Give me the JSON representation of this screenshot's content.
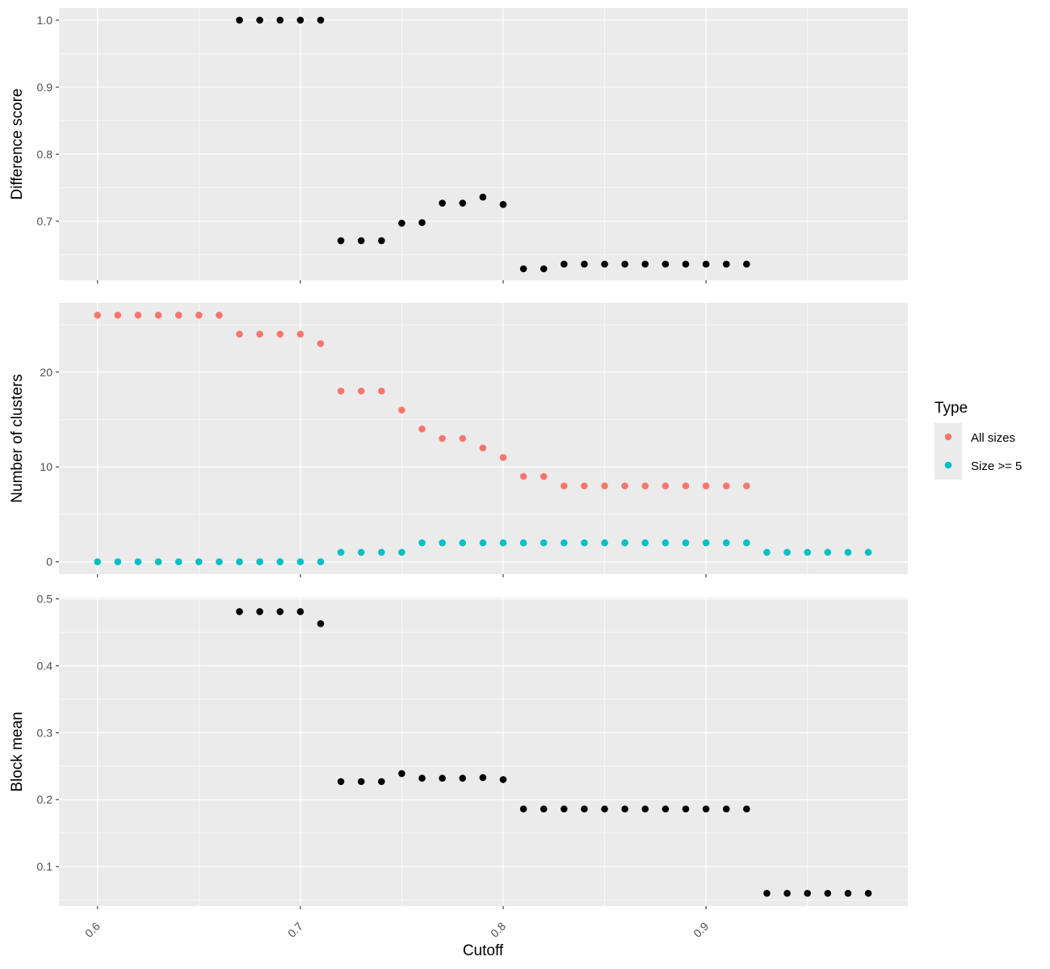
{
  "chart_data": {
    "type": "scatter",
    "x_label": "Cutoff",
    "x_ticks": [
      "0.6",
      "0.7",
      "0.8",
      "0.9"
    ],
    "x_range": [
      0.581,
      0.9995
    ],
    "grid": true,
    "legend": {
      "title": "Type",
      "placement": "right",
      "entries": [
        {
          "name": "All sizes",
          "color": "#F8766D"
        },
        {
          "name": "Size >= 5",
          "color": "#00BFC4"
        }
      ]
    },
    "panels": [
      {
        "ylabel": "Difference score",
        "yticks": [
          "0.7",
          "0.8",
          "0.9",
          "1.0"
        ],
        "ylim": [
          0.612,
          1.018
        ],
        "series": [
          {
            "color": "#000000",
            "points": [
              [
                0.67,
                1.0
              ],
              [
                0.68,
                1.0
              ],
              [
                0.69,
                1.0
              ],
              [
                0.7,
                1.0
              ],
              [
                0.71,
                1.0
              ],
              [
                0.72,
                0.671
              ],
              [
                0.73,
                0.671
              ],
              [
                0.74,
                0.671
              ],
              [
                0.75,
                0.697
              ],
              [
                0.76,
                0.698
              ],
              [
                0.77,
                0.727
              ],
              [
                0.78,
                0.727
              ],
              [
                0.79,
                0.736
              ],
              [
                0.8,
                0.725
              ],
              [
                0.81,
                0.629
              ],
              [
                0.82,
                0.629
              ],
              [
                0.83,
                0.636
              ],
              [
                0.84,
                0.636
              ],
              [
                0.85,
                0.636
              ],
              [
                0.86,
                0.636
              ],
              [
                0.87,
                0.636
              ],
              [
                0.88,
                0.636
              ],
              [
                0.89,
                0.636
              ],
              [
                0.9,
                0.636
              ],
              [
                0.91,
                0.636
              ],
              [
                0.92,
                0.636
              ]
            ]
          }
        ]
      },
      {
        "ylabel": "Number of clusters",
        "yticks": [
          "0",
          "10",
          "20"
        ],
        "ylim": [
          -1.3,
          27.3
        ],
        "series": [
          {
            "name": "All sizes",
            "color": "#F8766D",
            "points": [
              [
                0.6,
                26
              ],
              [
                0.61,
                26
              ],
              [
                0.62,
                26
              ],
              [
                0.63,
                26
              ],
              [
                0.64,
                26
              ],
              [
                0.65,
                26
              ],
              [
                0.66,
                26
              ],
              [
                0.67,
                24
              ],
              [
                0.68,
                24
              ],
              [
                0.69,
                24
              ],
              [
                0.7,
                24
              ],
              [
                0.71,
                23
              ],
              [
                0.72,
                18
              ],
              [
                0.73,
                18
              ],
              [
                0.74,
                18
              ],
              [
                0.75,
                16
              ],
              [
                0.76,
                14
              ],
              [
                0.77,
                13
              ],
              [
                0.78,
                13
              ],
              [
                0.79,
                12
              ],
              [
                0.8,
                11
              ],
              [
                0.81,
                9
              ],
              [
                0.82,
                9
              ],
              [
                0.83,
                8
              ],
              [
                0.84,
                8
              ],
              [
                0.85,
                8
              ],
              [
                0.86,
                8
              ],
              [
                0.87,
                8
              ],
              [
                0.88,
                8
              ],
              [
                0.89,
                8
              ],
              [
                0.9,
                8
              ],
              [
                0.91,
                8
              ],
              [
                0.92,
                8
              ]
            ]
          },
          {
            "name": "Size >= 5",
            "color": "#00BFC4",
            "points": [
              [
                0.6,
                0
              ],
              [
                0.61,
                0
              ],
              [
                0.62,
                0
              ],
              [
                0.63,
                0
              ],
              [
                0.64,
                0
              ],
              [
                0.65,
                0
              ],
              [
                0.66,
                0
              ],
              [
                0.67,
                0
              ],
              [
                0.68,
                0
              ],
              [
                0.69,
                0
              ],
              [
                0.7,
                0
              ],
              [
                0.71,
                0
              ],
              [
                0.72,
                1
              ],
              [
                0.73,
                1
              ],
              [
                0.74,
                1
              ],
              [
                0.75,
                1
              ],
              [
                0.76,
                2
              ],
              [
                0.77,
                2
              ],
              [
                0.78,
                2
              ],
              [
                0.79,
                2
              ],
              [
                0.8,
                2
              ],
              [
                0.81,
                2
              ],
              [
                0.82,
                2
              ],
              [
                0.83,
                2
              ],
              [
                0.84,
                2
              ],
              [
                0.85,
                2
              ],
              [
                0.86,
                2
              ],
              [
                0.87,
                2
              ],
              [
                0.88,
                2
              ],
              [
                0.89,
                2
              ],
              [
                0.9,
                2
              ],
              [
                0.91,
                2
              ],
              [
                0.92,
                2
              ],
              [
                0.93,
                1
              ],
              [
                0.94,
                1
              ],
              [
                0.95,
                1
              ],
              [
                0.96,
                1
              ],
              [
                0.97,
                1
              ],
              [
                0.98,
                1
              ]
            ]
          }
        ]
      },
      {
        "ylabel": "Block mean",
        "yticks": [
          "0.1",
          "0.2",
          "0.3",
          "0.4",
          "0.5"
        ],
        "ylim": [
          0.041,
          0.502
        ],
        "series": [
          {
            "color": "#000000",
            "points": [
              [
                0.67,
                0.481
              ],
              [
                0.68,
                0.481
              ],
              [
                0.69,
                0.481
              ],
              [
                0.7,
                0.481
              ],
              [
                0.71,
                0.463
              ],
              [
                0.72,
                0.227
              ],
              [
                0.73,
                0.227
              ],
              [
                0.74,
                0.227
              ],
              [
                0.75,
                0.239
              ],
              [
                0.76,
                0.232
              ],
              [
                0.77,
                0.232
              ],
              [
                0.78,
                0.232
              ],
              [
                0.79,
                0.233
              ],
              [
                0.8,
                0.23
              ],
              [
                0.81,
                0.186
              ],
              [
                0.82,
                0.186
              ],
              [
                0.83,
                0.186
              ],
              [
                0.84,
                0.186
              ],
              [
                0.85,
                0.186
              ],
              [
                0.86,
                0.186
              ],
              [
                0.87,
                0.186
              ],
              [
                0.88,
                0.186
              ],
              [
                0.89,
                0.186
              ],
              [
                0.9,
                0.186
              ],
              [
                0.91,
                0.186
              ],
              [
                0.92,
                0.186
              ],
              [
                0.93,
                0.06
              ],
              [
                0.94,
                0.06
              ],
              [
                0.95,
                0.06
              ],
              [
                0.96,
                0.06
              ],
              [
                0.97,
                0.06
              ],
              [
                0.98,
                0.06
              ]
            ]
          }
        ]
      }
    ]
  }
}
